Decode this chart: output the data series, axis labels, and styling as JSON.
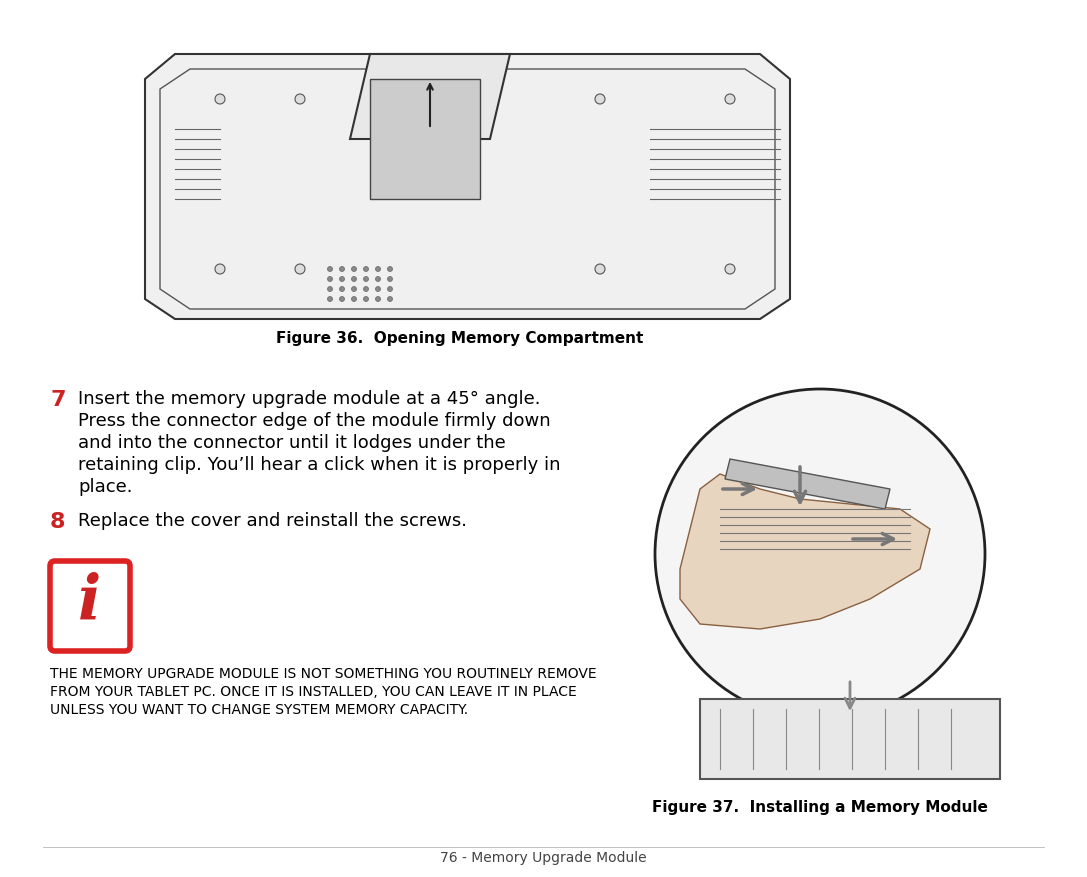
{
  "bg_color": "#ffffff",
  "fig_caption1": "Figure 36.  Opening Memory Compartment",
  "fig_caption2": "Figure 37.  Installing a Memory Module",
  "step7_num": "7",
  "step7_text_lines": [
    "Insert the memory upgrade module at a 45° angle.",
    "Press the connector edge of the module firmly down",
    "and into the connector until it lodges under the",
    "retaining clip. You’ll hear a click when it is properly in",
    "place."
  ],
  "step8_num": "8",
  "step8_text": "Replace the cover and reinstall the screws.",
  "info_text_lines": [
    "The memory upgrade module is not something you routinely remove",
    "from your Tablet PC. Once it is installed, you can leave it in place",
    "unless you want to change system memory capacity."
  ],
  "footer_text": "76 - Memory Upgrade Module",
  "red_color": "#cc2222",
  "info_border_color": "#dd2222",
  "text_color": "#000000",
  "caption_color": "#000000",
  "step_num_color": "#cc2222",
  "font_size_body": 13,
  "font_size_caption": 11,
  "font_size_footer": 10,
  "font_size_info": 11,
  "font_size_step": 14
}
